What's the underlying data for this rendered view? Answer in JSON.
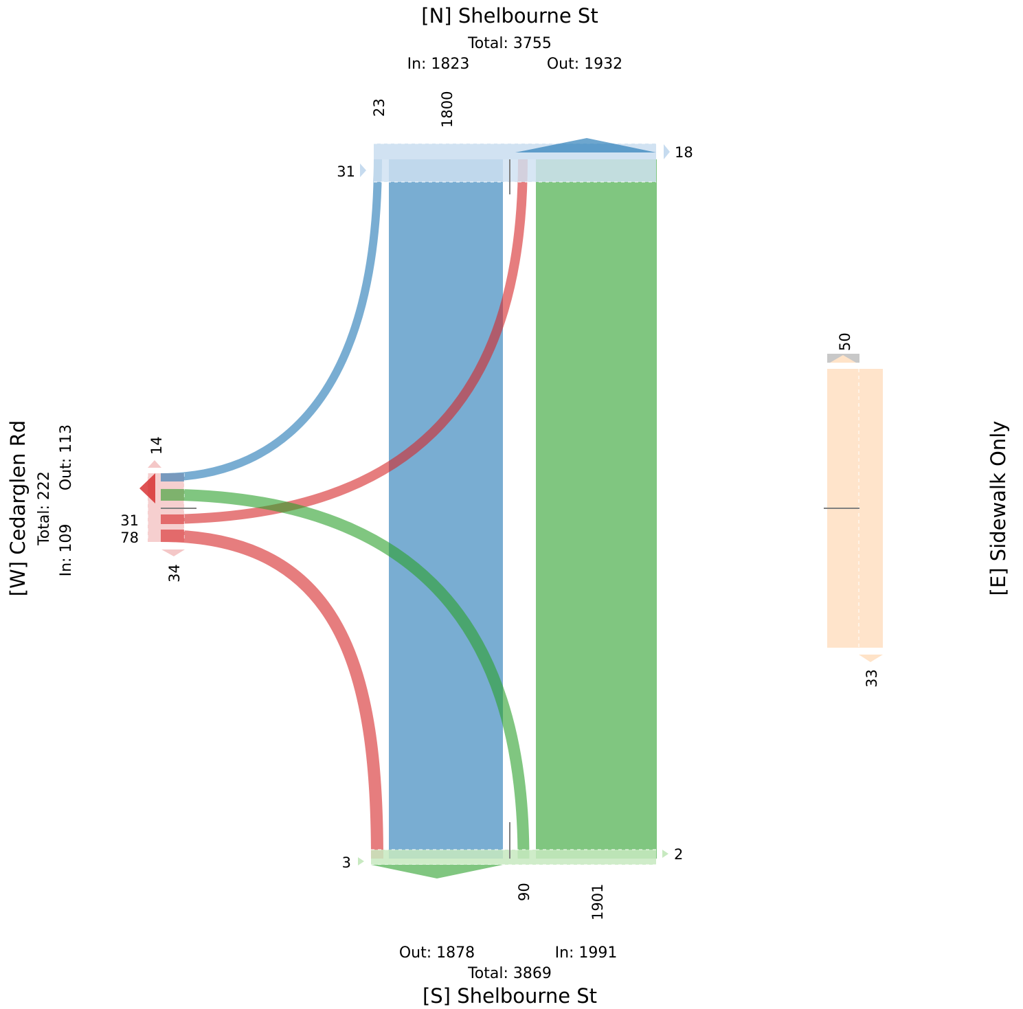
{
  "approaches": {
    "north": {
      "name": "[N] Shelbourne St",
      "total": "Total: 3755",
      "in": "In: 1823",
      "out": "Out: 1932"
    },
    "south": {
      "name": "[S] Shelbourne St",
      "total": "Total: 3869",
      "in": "In: 1991",
      "out": "Out: 1878"
    },
    "west": {
      "name": "[W] Cedarglen Rd",
      "total": "Total: 222",
      "in": "In: 109",
      "out": "Out: 113"
    },
    "east": {
      "name": "[E] Sidewalk Only"
    }
  },
  "movement_labels": {
    "n_left": "23",
    "n_through": "1800",
    "n_uturn_left": "31",
    "n_uturn_right": "18",
    "s_left": "90",
    "s_through": "1901",
    "s_uturn_left": "3",
    "s_uturn_right": "2",
    "w_top": "14",
    "w_left": "31",
    "w_right": "78",
    "w_bottom": "34",
    "e_top": "50",
    "e_bottom": "33"
  },
  "chart_data": {
    "type": "diagram",
    "flows": [
      {
        "from": "N",
        "to": "S",
        "volume": 1800,
        "color": "#1f77b4"
      },
      {
        "from": "N",
        "to": "W",
        "volume": 23,
        "color": "#1f77b4"
      },
      {
        "from": "S",
        "to": "N",
        "volume": 1901,
        "color": "#2ca02c"
      },
      {
        "from": "S",
        "to": "W",
        "volume": 90,
        "color": "#2ca02c"
      },
      {
        "from": "W",
        "to": "N",
        "volume": 31,
        "color": "#d62728"
      },
      {
        "from": "W",
        "to": "S",
        "volume": 78,
        "color": "#d62728"
      }
    ],
    "colors": {
      "north": "#1f77b4",
      "south": "#2ca02c",
      "west": "#d62728",
      "east": "#ffbb78",
      "north_light": "#c6dbef",
      "south_light": "#c7e9c0",
      "west_light": "#f4c7c7",
      "east_light": "#ffe3c8"
    }
  }
}
